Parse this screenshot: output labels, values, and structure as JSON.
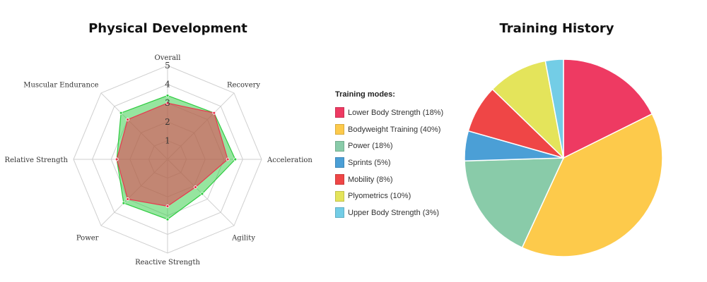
{
  "chart_data": [
    {
      "type": "radar",
      "title": "Physical Development",
      "axes": [
        "Overall",
        "Recovery",
        "Acceleration",
        "Agility",
        "Reactive Strength",
        "Power",
        "Relative Strength",
        "Muscular Endurance"
      ],
      "scale": {
        "min": 0,
        "max": 5,
        "ticks": [
          "1",
          "2",
          "3",
          "4",
          "5"
        ]
      },
      "series": [
        {
          "values": [
            3.4,
            3.5,
            3.6,
            2.6,
            3.2,
            3.3,
            2.7,
            3.5
          ],
          "color": "#2ecc40"
        },
        {
          "values": [
            3.0,
            3.5,
            3.2,
            2.1,
            2.5,
            3.0,
            2.7,
            3.0
          ],
          "color": "#e8384f"
        }
      ]
    },
    {
      "type": "pie",
      "title": "Training History",
      "legend_title": "Training modes:",
      "slices": [
        {
          "label": "Lower Body Strength (18%)",
          "value": 18,
          "color": "#ee3a62"
        },
        {
          "label": "Bodyweight Training (40%)",
          "value": 40,
          "color": "#fdca4b"
        },
        {
          "label": "Power (18%)",
          "value": 18,
          "color": "#89cba9"
        },
        {
          "label": "Sprints (5%)",
          "value": 5,
          "color": "#4b9fd6"
        },
        {
          "label": "Mobility (8%)",
          "value": 8,
          "color": "#ef4646"
        },
        {
          "label": "Plyometrics (10%)",
          "value": 10,
          "color": "#e4e45b"
        },
        {
          "label": "Upper Body Strength (3%)",
          "value": 3,
          "color": "#73cde6"
        }
      ]
    }
  ]
}
